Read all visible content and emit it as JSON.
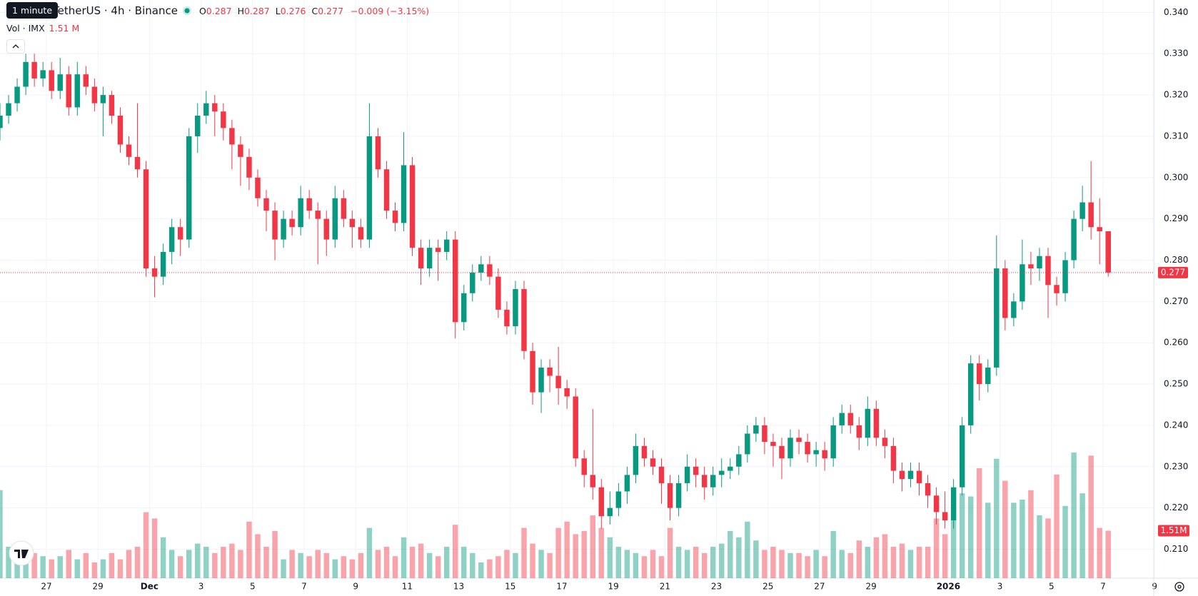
{
  "chart_data": {
    "type": "candlestick",
    "title": "TetherUS · 4h · Binance",
    "tooltip": "1 minute",
    "ohlc_labels": [
      "O",
      "H",
      "L",
      "C"
    ],
    "change": "−0.009 (−3.15%)",
    "volume_title": "Vol · IMX",
    "volume_legend_label": "1.51 M",
    "volume_axis_label": "1.51M",
    "up_color": "#089981",
    "down_color": "#f23645",
    "grid": true,
    "ylim": [
      0.203,
      0.343
    ],
    "yticks": [
      {
        "value": 0.21,
        "label": "0.210"
      },
      {
        "value": 0.22,
        "label": "0.220"
      },
      {
        "value": 0.23,
        "label": "0.230"
      },
      {
        "value": 0.24,
        "label": "0.240"
      },
      {
        "value": 0.25,
        "label": "0.250"
      },
      {
        "value": 0.26,
        "label": "0.260"
      },
      {
        "value": 0.27,
        "label": "0.270"
      },
      {
        "value": 0.28,
        "label": "0.280"
      },
      {
        "value": 0.29,
        "label": "0.290"
      },
      {
        "value": 0.3,
        "label": "0.300"
      },
      {
        "value": 0.31,
        "label": "0.310"
      },
      {
        "value": 0.32,
        "label": "0.320"
      },
      {
        "value": 0.33,
        "label": "0.330"
      },
      {
        "value": 0.34,
        "label": "0.340"
      }
    ],
    "xlim": [
      0,
      134.3
    ],
    "xticks": [
      {
        "value": 5.4,
        "label": "27"
      },
      {
        "value": 11.4,
        "label": "29"
      },
      {
        "value": 17.4,
        "label": "Dec"
      },
      {
        "value": 23.4,
        "label": "3"
      },
      {
        "value": 29.4,
        "label": "5"
      },
      {
        "value": 35.4,
        "label": "7"
      },
      {
        "value": 41.4,
        "label": "9"
      },
      {
        "value": 47.4,
        "label": "11"
      },
      {
        "value": 53.4,
        "label": "13"
      },
      {
        "value": 59.4,
        "label": "15"
      },
      {
        "value": 65.4,
        "label": "17"
      },
      {
        "value": 71.4,
        "label": "19"
      },
      {
        "value": 77.4,
        "label": "21"
      },
      {
        "value": 83.4,
        "label": "23"
      },
      {
        "value": 89.4,
        "label": "25"
      },
      {
        "value": 95.4,
        "label": "27"
      },
      {
        "value": 101.4,
        "label": "29"
      },
      {
        "value": 110.4,
        "label": "2026"
      },
      {
        "value": 116.4,
        "label": "3"
      },
      {
        "value": 122.4,
        "label": "5"
      },
      {
        "value": 128.4,
        "label": "7"
      },
      {
        "value": 134.4,
        "label": "9"
      }
    ],
    "volume_lim": [
      0,
      18.4
    ],
    "open": [
      0.312,
      0.315,
      0.318,
      0.322,
      0.328,
      0.324,
      0.326,
      0.321,
      0.325,
      0.317,
      0.325,
      0.322,
      0.318,
      0.32,
      0.315,
      0.308,
      0.305,
      0.302,
      0.278,
      0.276,
      0.282,
      0.288,
      0.285,
      0.31,
      0.315,
      0.318,
      0.316,
      0.312,
      0.308,
      0.305,
      0.3,
      0.295,
      0.292,
      0.285,
      0.29,
      0.288,
      0.295,
      0.292,
      0.29,
      0.285,
      0.295,
      0.29,
      0.288,
      0.285,
      0.31,
      0.302,
      0.292,
      0.289,
      0.303,
      0.283,
      0.278,
      0.283,
      0.282,
      0.285,
      0.265,
      0.272,
      0.277,
      0.279,
      0.276,
      0.268,
      0.264,
      0.273,
      0.258,
      0.248,
      0.254,
      0.252,
      0.249,
      0.247,
      0.232,
      0.228,
      0.225,
      0.218,
      0.22,
      0.224,
      0.228,
      0.235,
      0.232,
      0.23,
      0.226,
      0.22,
      0.226,
      0.23,
      0.228,
      0.225,
      0.228,
      0.229,
      0.23,
      0.233,
      0.238,
      0.24,
      0.236,
      0.235,
      0.232,
      0.237,
      0.236,
      0.233,
      0.234,
      0.232,
      0.24,
      0.243,
      0.24,
      0.237,
      0.244,
      0.237,
      0.235,
      0.229,
      0.227,
      0.229,
      0.226,
      0.223,
      0.219,
      0.217,
      0.225,
      0.24,
      0.255,
      0.25,
      0.254,
      0.278,
      0.266,
      0.27,
      0.279,
      0.278,
      0.281,
      0.274,
      0.272,
      0.28,
      0.29,
      0.294,
      0.288,
      0.287
    ],
    "high": [
      0.318,
      0.32,
      0.324,
      0.33,
      0.33,
      0.328,
      0.328,
      0.329,
      0.327,
      0.328,
      0.327,
      0.324,
      0.322,
      0.321,
      0.317,
      0.31,
      0.318,
      0.304,
      0.281,
      0.284,
      0.29,
      0.29,
      0.312,
      0.318,
      0.321,
      0.32,
      0.318,
      0.314,
      0.31,
      0.307,
      0.302,
      0.297,
      0.294,
      0.292,
      0.292,
      0.298,
      0.297,
      0.294,
      0.292,
      0.298,
      0.297,
      0.292,
      0.29,
      0.318,
      0.312,
      0.304,
      0.294,
      0.311,
      0.305,
      0.285,
      0.285,
      0.285,
      0.287,
      0.287,
      0.274,
      0.279,
      0.281,
      0.281,
      0.278,
      0.27,
      0.275,
      0.275,
      0.26,
      0.256,
      0.256,
      0.259,
      0.251,
      0.249,
      0.234,
      0.244,
      0.227,
      0.224,
      0.226,
      0.23,
      0.238,
      0.237,
      0.234,
      0.232,
      0.228,
      0.228,
      0.233,
      0.232,
      0.23,
      0.23,
      0.232,
      0.232,
      0.235,
      0.24,
      0.242,
      0.242,
      0.238,
      0.237,
      0.239,
      0.239,
      0.238,
      0.236,
      0.236,
      0.242,
      0.245,
      0.245,
      0.242,
      0.247,
      0.246,
      0.239,
      0.237,
      0.231,
      0.231,
      0.231,
      0.228,
      0.225,
      0.224,
      0.227,
      0.242,
      0.257,
      0.257,
      0.256,
      0.286,
      0.28,
      0.272,
      0.285,
      0.282,
      0.283,
      0.283,
      0.276,
      0.282,
      0.292,
      0.298,
      0.304,
      0.295,
      0.287
    ],
    "low": [
      0.309,
      0.313,
      0.316,
      0.32,
      0.322,
      0.322,
      0.319,
      0.319,
      0.315,
      0.315,
      0.32,
      0.316,
      0.31,
      0.313,
      0.306,
      0.303,
      0.3,
      0.276,
      0.271,
      0.274,
      0.279,
      0.281,
      0.283,
      0.306,
      0.313,
      0.31,
      0.309,
      0.302,
      0.298,
      0.297,
      0.293,
      0.287,
      0.28,
      0.283,
      0.286,
      0.286,
      0.29,
      0.279,
      0.281,
      0.283,
      0.288,
      0.283,
      0.283,
      0.283,
      0.3,
      0.29,
      0.287,
      0.287,
      0.281,
      0.274,
      0.276,
      0.275,
      0.28,
      0.261,
      0.263,
      0.27,
      0.275,
      0.274,
      0.266,
      0.262,
      0.262,
      0.256,
      0.245,
      0.243,
      0.248,
      0.245,
      0.244,
      0.23,
      0.225,
      0.222,
      0.215,
      0.216,
      0.218,
      0.221,
      0.226,
      0.23,
      0.228,
      0.221,
      0.217,
      0.218,
      0.224,
      0.225,
      0.222,
      0.223,
      0.225,
      0.227,
      0.228,
      0.231,
      0.236,
      0.233,
      0.23,
      0.227,
      0.23,
      0.233,
      0.231,
      0.23,
      0.229,
      0.23,
      0.238,
      0.238,
      0.234,
      0.235,
      0.235,
      0.232,
      0.226,
      0.224,
      0.225,
      0.223,
      0.22,
      0.216,
      0.215,
      0.215,
      0.223,
      0.238,
      0.246,
      0.248,
      0.252,
      0.263,
      0.264,
      0.268,
      0.274,
      0.275,
      0.266,
      0.269,
      0.27,
      0.278,
      0.287,
      0.285,
      0.279,
      0.276
    ],
    "close": [
      0.315,
      0.318,
      0.322,
      0.328,
      0.324,
      0.326,
      0.321,
      0.325,
      0.317,
      0.325,
      0.322,
      0.318,
      0.32,
      0.315,
      0.308,
      0.305,
      0.302,
      0.278,
      0.276,
      0.282,
      0.288,
      0.285,
      0.31,
      0.315,
      0.318,
      0.316,
      0.312,
      0.308,
      0.305,
      0.3,
      0.295,
      0.292,
      0.285,
      0.29,
      0.288,
      0.295,
      0.292,
      0.29,
      0.285,
      0.295,
      0.29,
      0.288,
      0.285,
      0.31,
      0.302,
      0.292,
      0.289,
      0.303,
      0.283,
      0.278,
      0.283,
      0.282,
      0.285,
      0.265,
      0.272,
      0.277,
      0.279,
      0.276,
      0.268,
      0.264,
      0.273,
      0.258,
      0.248,
      0.254,
      0.252,
      0.249,
      0.247,
      0.232,
      0.228,
      0.225,
      0.218,
      0.22,
      0.224,
      0.228,
      0.235,
      0.232,
      0.23,
      0.226,
      0.22,
      0.226,
      0.23,
      0.228,
      0.225,
      0.228,
      0.229,
      0.23,
      0.233,
      0.238,
      0.24,
      0.236,
      0.235,
      0.232,
      0.237,
      0.236,
      0.233,
      0.234,
      0.232,
      0.24,
      0.243,
      0.24,
      0.237,
      0.244,
      0.237,
      0.235,
      0.229,
      0.227,
      0.229,
      0.226,
      0.223,
      0.219,
      0.217,
      0.225,
      0.24,
      0.255,
      0.25,
      0.254,
      0.278,
      0.266,
      0.27,
      0.279,
      0.278,
      0.281,
      0.274,
      0.272,
      0.28,
      0.29,
      0.294,
      0.288,
      0.287,
      0.277
    ],
    "volume": [
      2.8,
      1.0,
      0.9,
      0.8,
      0.8,
      0.7,
      0.6,
      0.7,
      0.9,
      0.6,
      0.8,
      0.5,
      0.6,
      0.8,
      0.6,
      0.9,
      1.0,
      2.1,
      1.9,
      1.3,
      0.9,
      0.7,
      0.9,
      1.1,
      1.0,
      0.8,
      1.0,
      1.1,
      0.9,
      1.8,
      1.4,
      1.0,
      1.5,
      0.6,
      0.9,
      0.8,
      0.7,
      0.9,
      0.8,
      0.6,
      0.7,
      0.6,
      0.8,
      1.6,
      0.9,
      1.0,
      0.7,
      1.3,
      1.0,
      1.1,
      0.8,
      0.7,
      1.0,
      1.7,
      1.0,
      0.8,
      0.5,
      0.6,
      0.7,
      0.9,
      0.8,
      1.6,
      1.1,
      0.9,
      0.8,
      1.6,
      1.8,
      1.4,
      1.5,
      2.0,
      1.6,
      1.3,
      1.0,
      0.9,
      0.8,
      0.7,
      0.9,
      0.7,
      1.6,
      1.0,
      0.9,
      1.0,
      0.8,
      1.0,
      1.1,
      1.5,
      1.3,
      1.8,
      1.2,
      0.9,
      1.0,
      0.9,
      0.8,
      0.8,
      0.7,
      0.9,
      0.7,
      1.5,
      0.9,
      0.8,
      1.2,
      1.0,
      1.3,
      1.4,
      1.0,
      1.1,
      0.9,
      1.0,
      1.0,
      1.9,
      1.4,
      1.9,
      2.7,
      2.6,
      3.5,
      2.4,
      3.8,
      3.1,
      2.4,
      2.5,
      2.8,
      2.0,
      1.9,
      3.3,
      2.3,
      4.0,
      2.7,
      3.9,
      1.6,
      1.51
    ]
  }
}
